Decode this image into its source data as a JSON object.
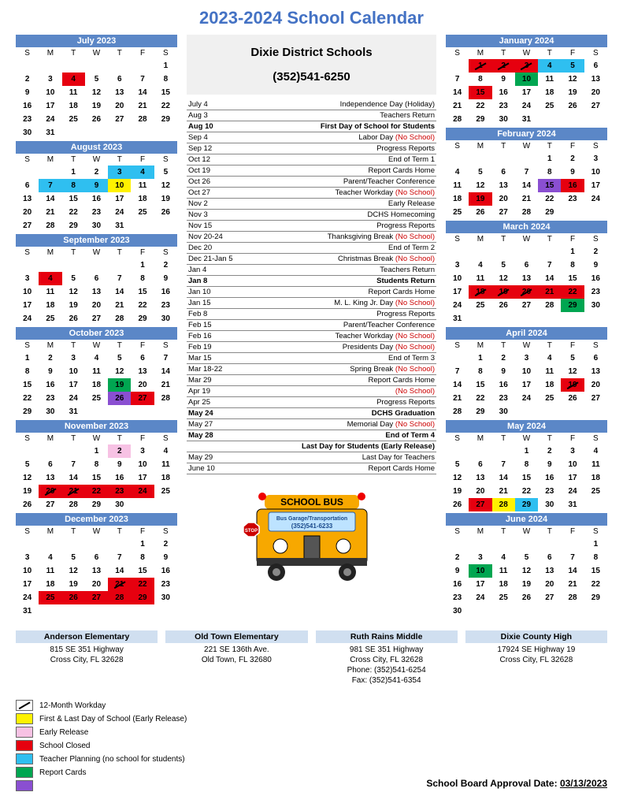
{
  "title": "2023-2024 School Calendar",
  "district": {
    "name": "Dixie District Schools",
    "phone": "(352)541-6250"
  },
  "colors": {
    "header_bg": "#5b87c7",
    "yellow": "#fff200",
    "pink": "#f7c2e4",
    "red": "#e6000f",
    "green": "#00a651",
    "purple": "#8a4fd1",
    "cyan": "#2fbff0",
    "school_hdr": "#d0dff0",
    "event_red": "#c00000"
  },
  "dow": [
    "S",
    "M",
    "T",
    "W",
    "T",
    "F",
    "S"
  ],
  "months_left": [
    {
      "name": "July 2023",
      "start": 6,
      "days": 31,
      "hi": {
        "4": "red"
      }
    },
    {
      "name": "August 2023",
      "start": 2,
      "days": 31,
      "hi": {
        "3": "cyan",
        "4": "cyan",
        "7": "cyan",
        "8": "cyan",
        "9": "cyan",
        "10": "yellow"
      }
    },
    {
      "name": "September 2023",
      "start": 5,
      "days": 30,
      "hi": {
        "4": "red"
      }
    },
    {
      "name": "October 2023",
      "start": 0,
      "days": 31,
      "hi": {
        "19": "green",
        "26": "purple",
        "27": "red"
      }
    },
    {
      "name": "November 2023",
      "start": 3,
      "days": 30,
      "hi": {
        "2": "pink",
        "20": "red",
        "21": "red",
        "22": "red",
        "23": "red",
        "24": "red"
      },
      "slash": [
        "20",
        "21"
      ]
    },
    {
      "name": "December 2023",
      "start": 5,
      "days": 31,
      "hi": {
        "21": "red",
        "22": "red",
        "25": "red",
        "26": "red",
        "27": "red",
        "28": "red",
        "29": "red"
      },
      "slash": [
        "21"
      ]
    }
  ],
  "months_right": [
    {
      "name": "January 2024",
      "start": 1,
      "days": 31,
      "hi": {
        "1": "red",
        "2": "red",
        "3": "red",
        "4": "cyan",
        "5": "cyan",
        "10": "green",
        "15": "red"
      },
      "slash": [
        "1",
        "2",
        "3"
      ]
    },
    {
      "name": "February 2024",
      "start": 4,
      "days": 29,
      "hi": {
        "15": "purple",
        "16": "red",
        "19": "red"
      }
    },
    {
      "name": "March 2024",
      "start": 5,
      "days": 31,
      "hi": {
        "18": "red",
        "19": "red",
        "20": "red",
        "21": "red",
        "22": "red",
        "29": "green"
      },
      "slash": [
        "18",
        "19",
        "20"
      ]
    },
    {
      "name": "April 2024",
      "start": 1,
      "days": 30,
      "hi": {
        "19": "red"
      },
      "slash": [
        "19"
      ]
    },
    {
      "name": "May 2024",
      "start": 3,
      "days": 31,
      "hi": {
        "27": "red",
        "28": "yellow",
        "29": "cyan"
      }
    },
    {
      "name": "June 2024",
      "start": 6,
      "days": 30,
      "hi": {
        "10": "green"
      }
    }
  ],
  "events": [
    {
      "date": "July 4",
      "desc": "Independence Day (Holiday)"
    },
    {
      "date": "Aug 3",
      "desc": "Teachers Return"
    },
    {
      "date": "Aug 10",
      "desc": "First Day of School for Students",
      "bold": true
    },
    {
      "date": "Sep 4",
      "desc": "Labor Day",
      "red": "(No School)"
    },
    {
      "date": "Sep 12",
      "desc": "Progress Reports"
    },
    {
      "date": "Oct 12",
      "desc": "End of Term 1"
    },
    {
      "date": "Oct 19",
      "desc": "Report Cards Home"
    },
    {
      "date": "Oct 26",
      "desc": "Parent/Teacher Conference"
    },
    {
      "date": "Oct 27",
      "desc": "Teacher Workday",
      "red": "(No School)"
    },
    {
      "date": "Nov 2",
      "desc": "Early Release"
    },
    {
      "date": "Nov 3",
      "desc": "DCHS Homecoming"
    },
    {
      "date": "Nov 15",
      "desc": "Progress Reports"
    },
    {
      "date": "Nov 20-24",
      "desc": "Thanksgiving Break",
      "red": "(No School)"
    },
    {
      "date": "Dec 20",
      "desc": "End of Term 2"
    },
    {
      "date": "Dec 21-Jan 5",
      "desc": "Christmas Break",
      "red": "(No School)"
    },
    {
      "date": "Jan 4",
      "desc": "Teachers Return"
    },
    {
      "date": "Jan 8",
      "desc": "Students Return",
      "bold": true
    },
    {
      "date": "Jan 10",
      "desc": "Report Cards Home"
    },
    {
      "date": "Jan 15",
      "desc": "M. L. King Jr. Day",
      "red": "(No School)"
    },
    {
      "date": "Feb 8",
      "desc": "Progress Reports"
    },
    {
      "date": "Feb 15",
      "desc": "Parent/Teacher Conference"
    },
    {
      "date": "Feb 16",
      "desc": "Teacher Workday",
      "red": "(No School)"
    },
    {
      "date": "Feb 19",
      "desc": "Presidents Day",
      "red": "(No School)"
    },
    {
      "date": "Mar 15",
      "desc": "End of Term 3"
    },
    {
      "date": "Mar 18-22",
      "desc": "Spring Break",
      "red": "(No School)"
    },
    {
      "date": "Mar 29",
      "desc": "Report Cards Home"
    },
    {
      "date": "Apr 19",
      "desc": "",
      "red": "(No School)"
    },
    {
      "date": "Apr 25",
      "desc": "Progress Reports"
    },
    {
      "date": "May 24",
      "desc": "DCHS Graduation",
      "bold": true
    },
    {
      "date": "May 27",
      "desc": "Memorial Day",
      "red": "(No School)"
    },
    {
      "date": "May 28",
      "desc": "End of Term 4",
      "bold": true
    },
    {
      "date": "",
      "desc": "Last Day for Students (Early Release)",
      "bold": true
    },
    {
      "date": "May 29",
      "desc": "Last Day for Teachers"
    },
    {
      "date": "June 10",
      "desc": "Report Cards Home"
    }
  ],
  "bus": {
    "banner": "SCHOOL BUS",
    "line1": "Bus Garage/Transportation",
    "line2": "(352)541-6233",
    "stop": "STOP"
  },
  "schools": [
    {
      "name": "Anderson Elementary",
      "l1": "815 SE 351 Highway",
      "l2": "Cross City, FL  32628"
    },
    {
      "name": "Old Town Elementary",
      "l1": "221 SE 136th Ave.",
      "l2": "Old Town, FL  32680"
    },
    {
      "name": "Ruth Rains Middle",
      "l1": "981 SE 351 Highway",
      "l2": "Cross City, FL  32628",
      "l3": "Phone:  (352)541-6254",
      "l4": "Fax:  (352)541-6354"
    },
    {
      "name": "Dixie County High",
      "l1": "17924 SE Highway 19",
      "l2": "Cross City, FL  32628"
    }
  ],
  "legend": [
    {
      "style": "slash",
      "label": "12-Month Workday"
    },
    {
      "style": "yellow",
      "label": "First & Last Day of School (Early Release)"
    },
    {
      "style": "pink",
      "label": "Early Release"
    },
    {
      "style": "red",
      "label": "School Closed"
    },
    {
      "style": "cyan",
      "label": "Teacher Planning (no school for students)"
    },
    {
      "style": "green",
      "label": "Report Cards"
    },
    {
      "style": "purple",
      "label": ""
    }
  ],
  "approval": {
    "label": "School Board Approval Date: ",
    "date": "03/13/2023"
  }
}
